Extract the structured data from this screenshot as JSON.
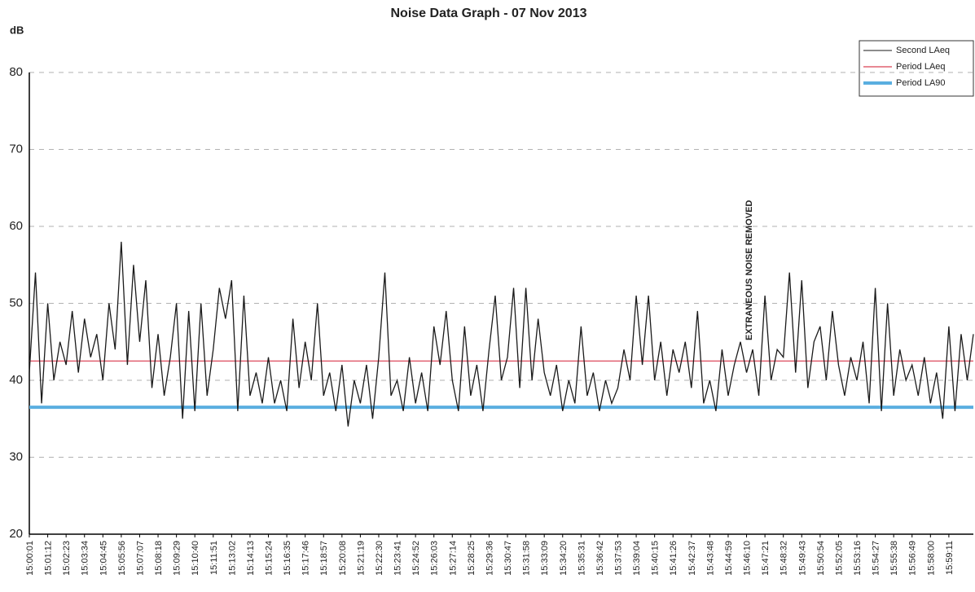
{
  "chart_data": {
    "type": "line",
    "title": "Noise Data Graph - 07 Nov 2013",
    "y_label": "dB",
    "annotation": "EXTRANEOUS NOISE REMOVED",
    "ylim": [
      20,
      80
    ],
    "yticks": [
      20,
      30,
      40,
      50,
      60,
      70,
      80
    ],
    "grid": true,
    "legend": "top-right",
    "categories": [
      "15:00:01",
      null,
      null,
      "15:01:12",
      null,
      null,
      "15:02:23",
      null,
      null,
      "15:03:34",
      null,
      null,
      "15:04:45",
      null,
      null,
      "15:05:56",
      null,
      null,
      "15:07:07",
      null,
      null,
      "15:08:18",
      null,
      null,
      "15:09:29",
      null,
      null,
      "15:10:40",
      null,
      null,
      "15:11:51",
      null,
      null,
      "15:13:02",
      null,
      null,
      "15:14:13",
      null,
      null,
      "15:15:24",
      null,
      null,
      "15:16:35",
      null,
      null,
      "15:17:46",
      null,
      null,
      "15:18:57",
      null,
      null,
      "15:20:08",
      null,
      null,
      "15:21:19",
      null,
      null,
      "15:22:30",
      null,
      null,
      "15:23:41",
      null,
      null,
      "15:24:52",
      null,
      null,
      "15:26:03",
      null,
      null,
      "15:27:14",
      null,
      null,
      "15:28:25",
      null,
      null,
      "15:29:36",
      null,
      null,
      "15:30:47",
      null,
      null,
      "15:31:58",
      null,
      null,
      "15:33:09",
      null,
      null,
      "15:34:20",
      null,
      null,
      "15:35:31",
      null,
      null,
      "15:36:42",
      null,
      null,
      "15:37:53",
      null,
      null,
      "15:39:04",
      null,
      null,
      "15:40:15",
      null,
      null,
      "15:41:26",
      null,
      null,
      "15:42:37",
      null,
      null,
      "15:43:48",
      null,
      null,
      "15:44:59",
      null,
      null,
      "15:46:10",
      null,
      null,
      "15:47:21",
      null,
      null,
      "15:48:32",
      null,
      null,
      "15:49:43",
      null,
      null,
      "15:50:54",
      null,
      null,
      "15:52:05",
      null,
      null,
      "15:53:16",
      null,
      null,
      "15:54:27",
      null,
      null,
      "15:55:38",
      null,
      null,
      "15:56:49",
      null,
      null,
      "15:58:00",
      null,
      null,
      "15:59:11",
      null,
      null,
      null,
      null
    ],
    "series": [
      {
        "name": "Second LAeq",
        "color": "#1a1a1a",
        "values": [
          41,
          54,
          37,
          50,
          40,
          45,
          42,
          49,
          41,
          48,
          43,
          46,
          40,
          50,
          44,
          58,
          42,
          55,
          45,
          53,
          39,
          46,
          38,
          43,
          50,
          35,
          49,
          36,
          50,
          38,
          44,
          52,
          48,
          53,
          36,
          51,
          38,
          41,
          37,
          43,
          37,
          40,
          36,
          48,
          39,
          45,
          40,
          50,
          38,
          41,
          36,
          42,
          34,
          40,
          37,
          42,
          35,
          43,
          54,
          38,
          40,
          36,
          43,
          37,
          41,
          36,
          47,
          42,
          49,
          40,
          36,
          47,
          38,
          42,
          36,
          44,
          51,
          40,
          43,
          52,
          39,
          52,
          40,
          48,
          41,
          38,
          42,
          36,
          40,
          37,
          47,
          38,
          41,
          36,
          40,
          37,
          39,
          44,
          40,
          51,
          42,
          51,
          40,
          45,
          38,
          44,
          41,
          45,
          39,
          49,
          37,
          40,
          36,
          44,
          38,
          42,
          45,
          41,
          44,
          38,
          51,
          40,
          44,
          43,
          54,
          41,
          53,
          39,
          45,
          47,
          40,
          49,
          42,
          38,
          43,
          40,
          45,
          37,
          52,
          36,
          50,
          38,
          44,
          40,
          42,
          38,
          43,
          37,
          41,
          35,
          47,
          36,
          46,
          40,
          46
        ]
      }
    ],
    "reference_lines": [
      {
        "name": "Period LAeq",
        "color": "#e06070",
        "value": 42.5
      },
      {
        "name": "Period LA90",
        "color": "#5aaee0",
        "value": 36.5
      }
    ]
  }
}
